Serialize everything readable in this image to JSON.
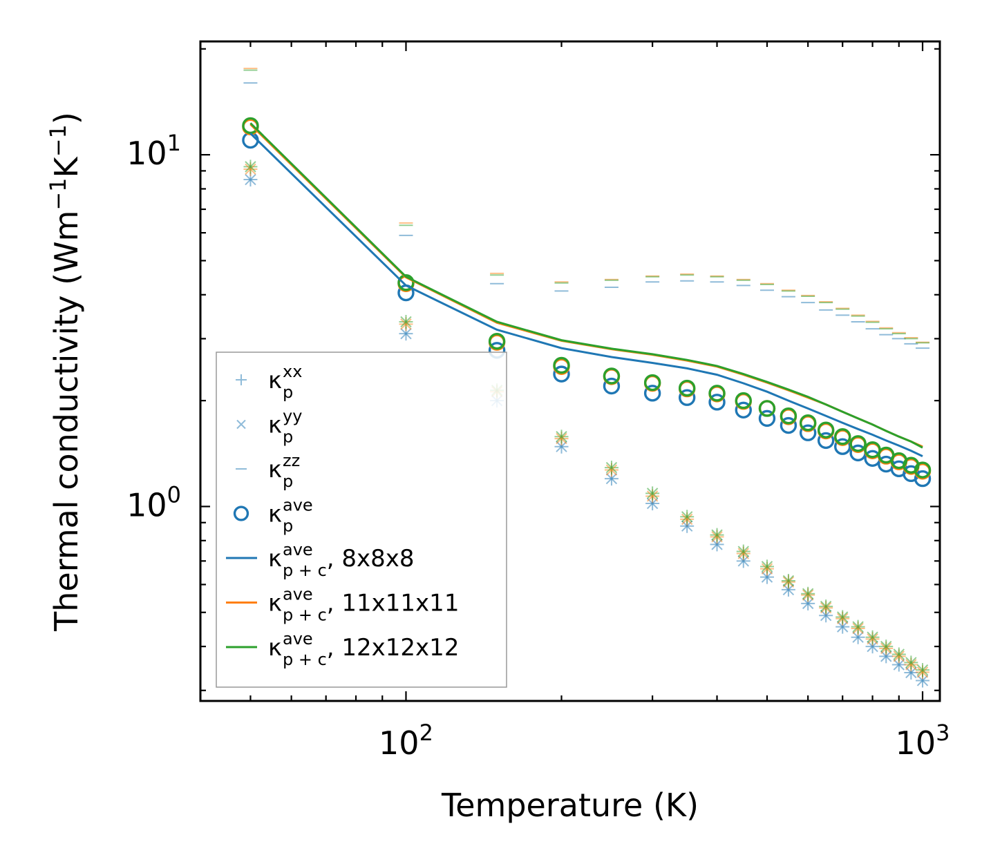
{
  "chart_data": {
    "type": "line",
    "xscale": "log",
    "yscale": "log",
    "xlabel": "Temperature (K)",
    "ylabel": {
      "base": "Thermal conductivity (Wm",
      "sup1": "−1",
      "mid": "K",
      "sup2": "−1",
      "end": ")"
    },
    "xlim": [
      40,
      1080
    ],
    "ylim": [
      0.28,
      21
    ],
    "x_ticks": [
      {
        "value": 100,
        "base": "10",
        "exp": "2"
      },
      {
        "value": 1000,
        "base": "10",
        "exp": "3"
      }
    ],
    "y_ticks": [
      {
        "value": 1,
        "base": "10",
        "exp": "0"
      },
      {
        "value": 10,
        "base": "10",
        "exp": "1"
      }
    ],
    "x": [
      50,
      100,
      150,
      200,
      250,
      300,
      350,
      400,
      450,
      500,
      550,
      600,
      650,
      700,
      750,
      800,
      850,
      900,
      950,
      1000
    ],
    "colors": {
      "c8": "#1f77b4",
      "c11": "#ff7f0e",
      "c12": "#2ca02c"
    },
    "series": [
      {
        "name": "kp_xx",
        "kind": "plus",
        "opacity": 0.5,
        "values_by_mesh": [
          [
            8.5,
            3.1,
            2.0,
            1.48,
            1.2,
            1.02,
            0.88,
            0.78,
            0.7,
            0.63,
            0.58,
            0.53,
            0.49,
            0.455,
            0.425,
            0.4,
            0.375,
            0.355,
            0.337,
            0.32
          ],
          [
            9.1,
            3.3,
            2.12,
            1.56,
            1.27,
            1.07,
            0.92,
            0.82,
            0.735,
            0.665,
            0.61,
            0.56,
            0.515,
            0.48,
            0.45,
            0.42,
            0.395,
            0.375,
            0.355,
            0.338
          ],
          [
            9.25,
            3.35,
            2.14,
            1.58,
            1.29,
            1.09,
            0.935,
            0.83,
            0.745,
            0.675,
            0.615,
            0.565,
            0.52,
            0.485,
            0.455,
            0.425,
            0.4,
            0.38,
            0.36,
            0.343
          ]
        ]
      },
      {
        "name": "kp_yy",
        "kind": "cross",
        "opacity": 0.5,
        "values_by_mesh": [
          [
            8.5,
            3.1,
            2.0,
            1.48,
            1.2,
            1.02,
            0.88,
            0.78,
            0.7,
            0.63,
            0.58,
            0.53,
            0.49,
            0.455,
            0.425,
            0.4,
            0.375,
            0.355,
            0.337,
            0.32
          ],
          [
            9.1,
            3.3,
            2.12,
            1.56,
            1.27,
            1.07,
            0.92,
            0.82,
            0.735,
            0.665,
            0.61,
            0.56,
            0.515,
            0.48,
            0.45,
            0.42,
            0.395,
            0.375,
            0.355,
            0.338
          ],
          [
            9.25,
            3.35,
            2.14,
            1.58,
            1.29,
            1.09,
            0.935,
            0.83,
            0.745,
            0.675,
            0.615,
            0.565,
            0.52,
            0.485,
            0.455,
            0.425,
            0.4,
            0.38,
            0.36,
            0.343
          ]
        ]
      },
      {
        "name": "kp_zz",
        "kind": "dash",
        "opacity": 0.5,
        "values_by_mesh": [
          [
            16.0,
            5.9,
            4.3,
            4.1,
            4.2,
            4.35,
            4.38,
            4.35,
            4.25,
            4.12,
            3.95,
            3.8,
            3.62,
            3.5,
            3.35,
            3.2,
            3.08,
            3.0,
            2.9,
            2.82
          ],
          [
            17.6,
            6.4,
            4.6,
            4.35,
            4.42,
            4.52,
            4.58,
            4.52,
            4.42,
            4.3,
            4.12,
            3.98,
            3.82,
            3.66,
            3.5,
            3.36,
            3.22,
            3.12,
            3.02,
            2.93
          ],
          [
            17.4,
            6.3,
            4.55,
            4.32,
            4.4,
            4.5,
            4.55,
            4.5,
            4.4,
            4.28,
            4.1,
            3.96,
            3.8,
            3.64,
            3.48,
            3.34,
            3.2,
            3.1,
            3.0,
            2.92
          ]
        ]
      },
      {
        "name": "kp_ave",
        "kind": "circle",
        "opacity": 1.0,
        "values_by_mesh": [
          [
            11.0,
            4.05,
            2.78,
            2.38,
            2.2,
            2.1,
            2.04,
            1.98,
            1.88,
            1.78,
            1.7,
            1.62,
            1.54,
            1.48,
            1.42,
            1.37,
            1.32,
            1.28,
            1.24,
            1.2
          ],
          [
            12.0,
            4.3,
            2.93,
            2.5,
            2.34,
            2.24,
            2.16,
            2.09,
            1.99,
            1.9,
            1.8,
            1.72,
            1.64,
            1.57,
            1.5,
            1.44,
            1.39,
            1.34,
            1.3,
            1.26
          ],
          [
            12.1,
            4.33,
            2.95,
            2.52,
            2.35,
            2.25,
            2.17,
            2.1,
            2.0,
            1.9,
            1.81,
            1.73,
            1.65,
            1.58,
            1.51,
            1.45,
            1.4,
            1.35,
            1.31,
            1.27
          ]
        ]
      },
      {
        "name": "kpc_ave_8x8x8",
        "kind": "line",
        "mesh": 0,
        "values": [
          11.5,
          4.25,
          3.18,
          2.82,
          2.66,
          2.56,
          2.47,
          2.37,
          2.24,
          2.12,
          2.0,
          1.9,
          1.81,
          1.73,
          1.66,
          1.6,
          1.54,
          1.49,
          1.44,
          1.39
        ]
      },
      {
        "name": "kpc_ave_11x11x11",
        "kind": "line",
        "mesh": 1,
        "values": [
          12.2,
          4.48,
          3.33,
          2.96,
          2.8,
          2.7,
          2.6,
          2.5,
          2.37,
          2.25,
          2.14,
          2.04,
          1.95,
          1.86,
          1.78,
          1.71,
          1.64,
          1.58,
          1.53,
          1.48
        ]
      },
      {
        "name": "kpc_ave_12x12x12",
        "kind": "line",
        "mesh": 2,
        "values": [
          12.3,
          4.5,
          3.35,
          2.97,
          2.81,
          2.71,
          2.61,
          2.51,
          2.38,
          2.26,
          2.15,
          2.05,
          1.95,
          1.86,
          1.78,
          1.71,
          1.64,
          1.58,
          1.53,
          1.47
        ]
      }
    ],
    "legend": {
      "location": "lower-left",
      "entries": [
        {
          "kind": "plus",
          "color": "#1f77b4",
          "opacity": 0.5,
          "label": "κ",
          "sub": "p",
          "sup": "xx",
          "suffix": ""
        },
        {
          "kind": "cross",
          "color": "#1f77b4",
          "opacity": 0.5,
          "label": "κ",
          "sub": "p",
          "sup": "yy",
          "suffix": ""
        },
        {
          "kind": "dash",
          "color": "#1f77b4",
          "opacity": 0.5,
          "label": "κ",
          "sub": "p",
          "sup": "zz",
          "suffix": ""
        },
        {
          "kind": "circle",
          "color": "#1f77b4",
          "opacity": 1.0,
          "label": "κ",
          "sub": "p",
          "sup": "ave",
          "suffix": ""
        },
        {
          "kind": "line",
          "color": "#1f77b4",
          "opacity": 1.0,
          "label": "κ",
          "sub": "p + c",
          "sup": "ave",
          "suffix": ", 8x8x8"
        },
        {
          "kind": "line",
          "color": "#ff7f0e",
          "opacity": 1.0,
          "label": "κ",
          "sub": "p + c",
          "sup": "ave",
          "suffix": ", 11x11x11"
        },
        {
          "kind": "line",
          "color": "#2ca02c",
          "opacity": 1.0,
          "label": "κ",
          "sub": "p + c",
          "sup": "ave",
          "suffix": ", 12x12x12"
        }
      ]
    }
  }
}
